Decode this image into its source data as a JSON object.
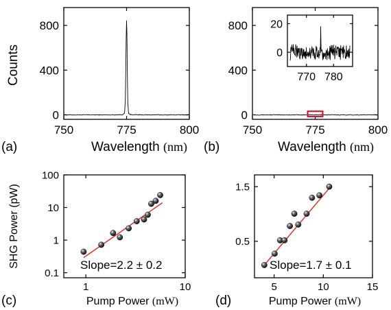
{
  "chart_data": [
    {
      "panel": "(a)",
      "type": "line",
      "xlabel": "Wavelength",
      "xunit": "(nm)",
      "ylabel": "Counts",
      "xlim": [
        750,
        800
      ],
      "ylim": [
        -40,
        960
      ],
      "xticks": [
        750,
        775,
        800
      ],
      "xtick_labels": [
        "750",
        "775",
        "800"
      ],
      "yticks": [
        0,
        400,
        800
      ],
      "ytick_labels": [
        "0",
        "400",
        "800"
      ],
      "series": [
        {
          "x": [
            750,
            760,
            770,
            773.5,
            774.2,
            774.5,
            774.7,
            774.85,
            775.0,
            775.15,
            775.3,
            775.5,
            775.8,
            776.5,
            780,
            790,
            800
          ],
          "y": [
            0,
            0,
            0,
            2,
            15,
            120,
            420,
            700,
            840,
            720,
            400,
            110,
            15,
            2,
            0,
            0,
            0
          ]
        }
      ],
      "noise_amplitude": 3,
      "grid": false
    },
    {
      "panel": "(b)",
      "type": "line",
      "xlabel": "Wavelength",
      "xunit": "(nm)",
      "xlim": [
        750,
        800
      ],
      "ylim": [
        -40,
        960
      ],
      "xticks": [
        750,
        775,
        800
      ],
      "xtick_labels": [
        "750",
        "775",
        "800"
      ],
      "yticks": [
        0,
        400,
        800
      ],
      "ytick_labels": [
        "0",
        "400",
        "800"
      ],
      "series": [
        {
          "x": [
            750,
            800
          ],
          "y": [
            0,
            0
          ]
        }
      ],
      "noise_amplitude": 3,
      "highlight_box": {
        "x": [
          772,
          778
        ],
        "y": [
          -15,
          32
        ],
        "color": "#e8001c"
      },
      "inset": {
        "type": "line",
        "xlim": [
          763,
          787
        ],
        "ylim": [
          -10,
          26
        ],
        "xticks": [
          770,
          780
        ],
        "xtick_labels": [
          "770",
          "780"
        ],
        "yticks": [
          0,
          20
        ],
        "ytick_labels": [
          "0",
          "20"
        ],
        "x_range": [
          764,
          786
        ],
        "noise_amplitude": 5,
        "spike": {
          "x": 775.3,
          "y": 18
        }
      },
      "grid": false
    },
    {
      "panel": "(c)",
      "type": "scatter",
      "xlabel": "Pump Power",
      "xunit": "(mW)",
      "ylabel": "SHG Power (pW)",
      "xscale": "log",
      "yscale": "log",
      "xlim": [
        0.6,
        10
      ],
      "ylim": [
        0.07,
        100
      ],
      "xticks": [
        1,
        10
      ],
      "xtick_labels": [
        "1",
        "10"
      ],
      "yticks": [
        0.1,
        1,
        10,
        100
      ],
      "ytick_labels": [
        "0.1",
        "1",
        "10",
        "100"
      ],
      "series": [
        {
          "x": [
            0.95,
            1.43,
            1.88,
            2.2,
            2.7,
            3.25,
            3.85,
            4.2,
            4.55,
            5.05,
            5.6
          ],
          "y": [
            0.44,
            0.72,
            1.65,
            1.22,
            2.3,
            3.8,
            4.3,
            6.0,
            13.0,
            16.0,
            24.0
          ]
        }
      ],
      "fit_line": {
        "x": [
          0.95,
          5.9
        ],
        "y": [
          0.29,
          14.0
        ],
        "color": "#e8241b"
      },
      "annotation": "Slope=2.2 ± 0.2",
      "grid": false
    },
    {
      "panel": "(d)",
      "type": "scatter",
      "xlabel": "Pump Power",
      "xunit": "(mW)",
      "yscale": "log",
      "xlim": [
        3,
        15
      ],
      "ylim": [
        0.24,
        1.9
      ],
      "xticks": [
        5,
        10,
        15
      ],
      "xtick_labels": [
        "5",
        "10",
        "15"
      ],
      "yticks": [
        0.5,
        1.5
      ],
      "ytick_labels": [
        "0.5",
        "1.5"
      ],
      "series": [
        {
          "x": [
            4.0,
            5.05,
            5.6,
            6.05,
            6.6,
            7.05,
            7.45,
            8.3,
            8.85,
            9.6,
            10.6
          ],
          "y": [
            0.31,
            0.39,
            0.51,
            0.51,
            0.68,
            0.87,
            0.7,
            0.87,
            1.2,
            1.26,
            1.5
          ]
        }
      ],
      "fit_line": {
        "x": [
          4.0,
          10.6
        ],
        "y": [
          0.31,
          1.45
        ],
        "color": "#e8241b"
      },
      "annotation": "Slope=1.7 ± 0.1",
      "grid": false
    }
  ]
}
